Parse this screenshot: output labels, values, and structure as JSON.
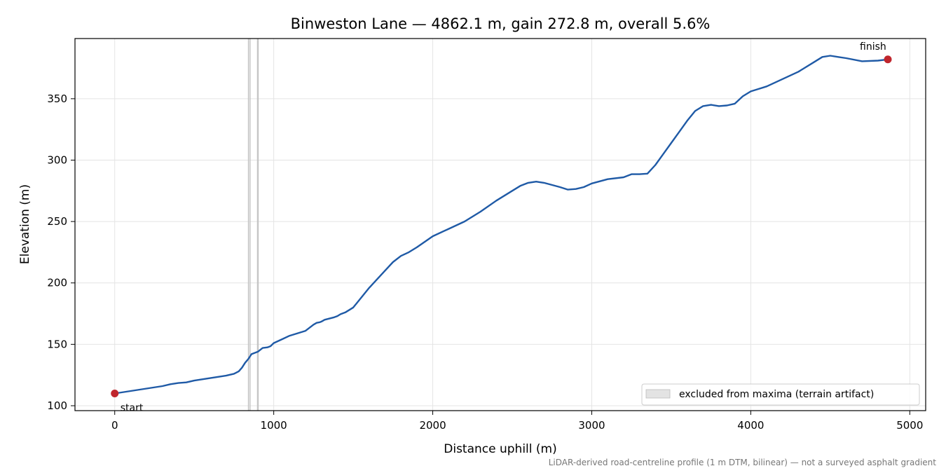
{
  "chart_data": {
    "type": "line",
    "title": "Binweston Lane — 4862.1 m, gain 272.8 m, overall 5.6%",
    "xlabel": "Distance uphill (m)",
    "ylabel": "Elevation (m)",
    "xlim": [
      -250,
      5100
    ],
    "ylim": [
      96,
      399
    ],
    "xticks": [
      0,
      1000,
      2000,
      3000,
      4000,
      5000
    ],
    "xtick_labels": [
      "0",
      "1000",
      "2000",
      "3000",
      "4000",
      "5000"
    ],
    "yticks": [
      100,
      150,
      200,
      250,
      300,
      350
    ],
    "ytick_labels": [
      "100",
      "150",
      "200",
      "250",
      "300",
      "350"
    ],
    "grid": true,
    "series": [
      {
        "color": "#1f5aa6",
        "x": [
          0,
          100,
          200,
          300,
          350,
          400,
          450,
          500,
          600,
          700,
          750,
          780,
          800,
          820,
          840,
          850,
          860,
          880,
          900,
          930,
          960,
          980,
          1000,
          1050,
          1100,
          1150,
          1200,
          1250,
          1270,
          1290,
          1300,
          1320,
          1350,
          1380,
          1400,
          1420,
          1450,
          1500,
          1600,
          1700,
          1750,
          1800,
          1850,
          1900,
          2000,
          2100,
          2200,
          2300,
          2400,
          2500,
          2550,
          2600,
          2650,
          2700,
          2800,
          2850,
          2900,
          2950,
          3000,
          3100,
          3200,
          3250,
          3300,
          3350,
          3400,
          3450,
          3500,
          3550,
          3600,
          3650,
          3700,
          3750,
          3800,
          3850,
          3900,
          3950,
          4000,
          4050,
          4100,
          4200,
          4300,
          4400,
          4450,
          4500,
          4550,
          4600,
          4700,
          4800,
          4862.1
        ],
        "y": [
          110,
          112,
          114,
          116,
          117.5,
          118.5,
          119,
          120.5,
          122.5,
          124.5,
          126,
          128,
          131,
          135,
          138,
          140,
          142,
          143,
          144,
          147,
          147.5,
          148.5,
          151,
          154,
          157,
          159,
          161,
          166,
          167.5,
          168,
          168.5,
          170,
          171,
          172,
          173,
          174.5,
          176,
          180,
          196,
          210,
          217,
          222,
          225,
          229,
          238,
          244,
          250,
          258,
          267,
          275,
          279,
          281.5,
          282.5,
          281.5,
          278,
          276,
          276.5,
          278,
          281,
          284.5,
          286,
          288.5,
          288.5,
          289,
          296,
          305,
          314,
          323,
          332,
          340,
          344,
          345,
          344,
          344.5,
          346,
          352,
          356,
          358,
          360,
          366,
          372,
          380,
          384,
          385,
          384,
          383,
          380.5,
          381,
          382
        ]
      }
    ],
    "markers": [
      {
        "x": 0,
        "y": 110,
        "label": "start",
        "color": "#c0262d"
      },
      {
        "x": 4862.1,
        "y": 382,
        "label": "finish",
        "color": "#c0262d"
      }
    ],
    "excluded_bands": [
      [
        840,
        852
      ],
      [
        897,
        903
      ]
    ],
    "legend": {
      "position": "lower-right",
      "entries": [
        "excluded from maxima (terrain artifact)"
      ]
    },
    "footnote": "LiDAR-derived road-centreline profile (1 m DTM, bilinear) — not a surveyed asphalt gradient"
  }
}
